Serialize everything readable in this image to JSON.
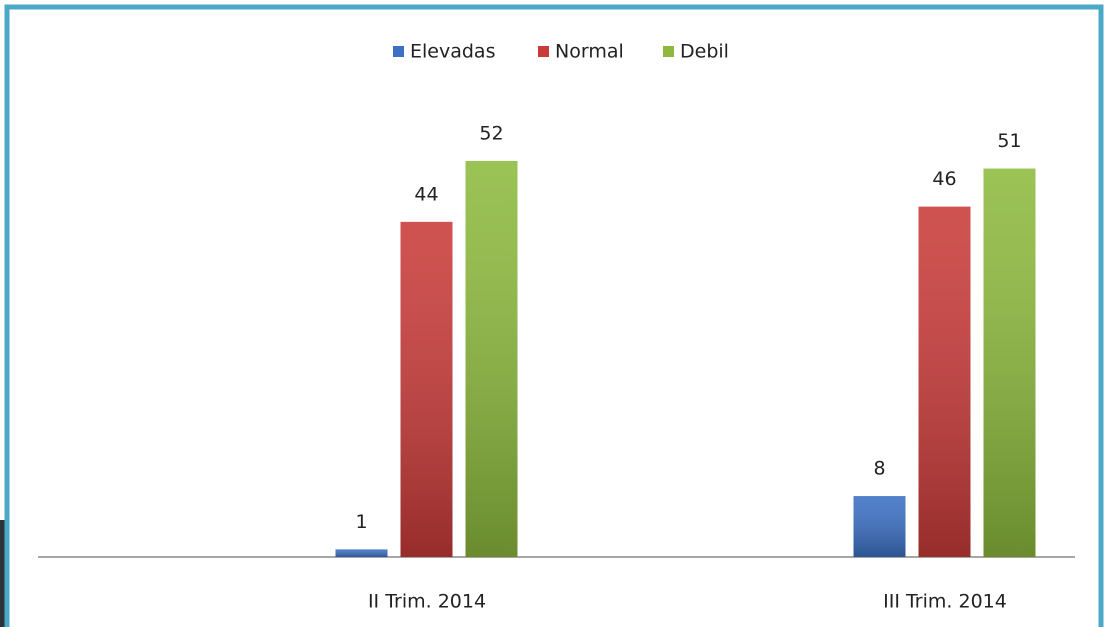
{
  "chart_data": {
    "type": "bar",
    "categories": [
      "II Trim. 2014",
      "III Trim. 2014"
    ],
    "series": [
      {
        "name": "Elevadas",
        "color": "#3b70c4",
        "values": [
          1,
          8
        ]
      },
      {
        "name": "Normal",
        "color": "#c93b39",
        "values": [
          44,
          46
        ]
      },
      {
        "name": "Debil",
        "color": "#8dba3d",
        "values": [
          52,
          51
        ]
      }
    ],
    "ylim": [
      0,
      60
    ],
    "legend": "top"
  }
}
